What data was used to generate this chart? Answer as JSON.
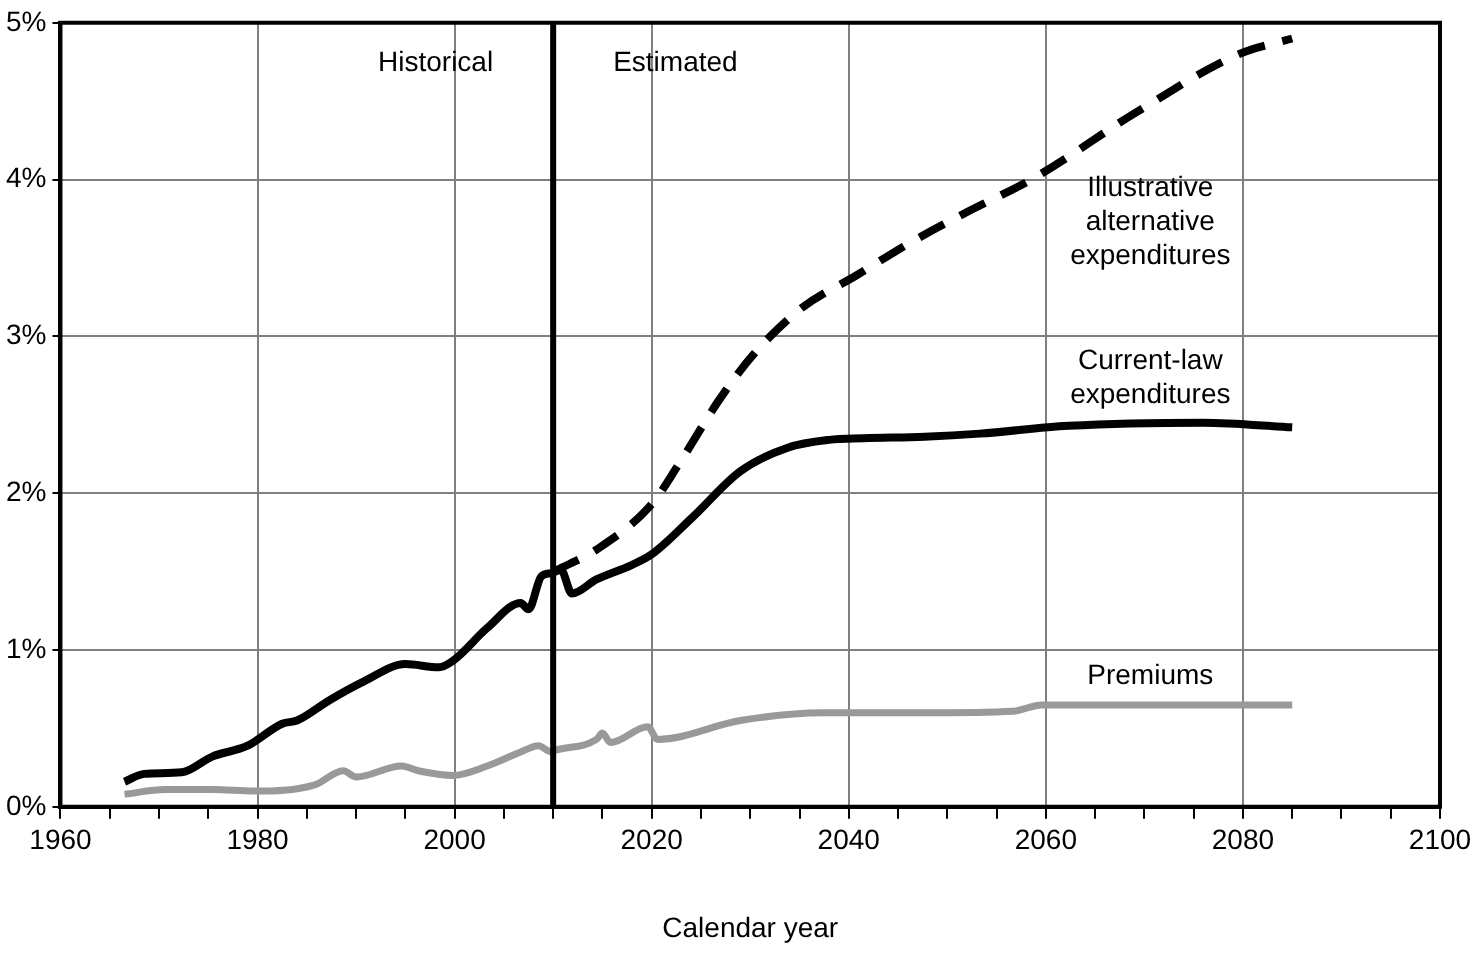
{
  "chart_data": {
    "type": "line",
    "xlabel": "Calendar year",
    "xlim": [
      1960,
      2100
    ],
    "xticks": [
      1960,
      {
        "value": 1965,
        "label": null
      },
      {
        "value": 1970,
        "label": null
      },
      {
        "value": 1975,
        "label": null
      },
      1980,
      {
        "value": 1985,
        "label": null
      },
      {
        "value": 1990,
        "label": null
      },
      {
        "value": 1995,
        "label": null
      },
      2000,
      {
        "value": 2005,
        "label": null
      },
      {
        "value": 2010,
        "label": null
      },
      {
        "value": 2015,
        "label": null
      },
      2020,
      {
        "value": 2025,
        "label": null
      },
      {
        "value": 2030,
        "label": null
      },
      {
        "value": 2035,
        "label": null
      },
      2040,
      {
        "value": 2045,
        "label": null
      },
      {
        "value": 2050,
        "label": null
      },
      {
        "value": 2055,
        "label": null
      },
      2060,
      {
        "value": 2065,
        "label": null
      },
      {
        "value": 2070,
        "label": null
      },
      {
        "value": 2075,
        "label": null
      },
      2080,
      {
        "value": 2085,
        "label": null
      },
      {
        "value": 2090,
        "label": null
      },
      {
        "value": 2095,
        "label": null
      },
      2100
    ],
    "ylim": [
      0,
      5
    ],
    "yticks": [
      {
        "value": 0,
        "label": "0%"
      },
      {
        "value": 1,
        "label": "1%"
      },
      {
        "value": 2,
        "label": "2%"
      },
      {
        "value": 3,
        "label": "3%"
      },
      {
        "value": 4,
        "label": "4%"
      },
      {
        "value": 5,
        "label": "5%"
      }
    ],
    "grid": true,
    "legend": false,
    "marker": "none",
    "series": [
      {
        "name": "Current-law expenditures",
        "color": "#000000",
        "line_style": "solid",
        "x": [
          1966.5,
          1968.5,
          1972.3,
          1975.4,
          1979,
          1982.5,
          1984,
          1987.3,
          1990.8,
          1995,
          1998.4,
          1999.8,
          2003.3,
          2006.7,
          2007.5,
          2008.8,
          2009.8,
          2010.8,
          2011.9,
          2014.4,
          2017.9,
          2020,
          2024.2,
          2029,
          2033.8,
          2038,
          2041.5,
          2047.7,
          2053.3,
          2062.3,
          2076,
          2085
        ],
        "values": [
          0.16,
          0.21,
          0.22,
          0.32,
          0.39,
          0.53,
          0.55,
          0.68,
          0.8,
          0.91,
          0.89,
          0.93,
          1.14,
          1.3,
          1.26,
          1.47,
          1.49,
          1.51,
          1.36,
          1.45,
          1.54,
          1.61,
          1.85,
          2.14,
          2.29,
          2.34,
          2.35,
          2.36,
          2.38,
          2.43,
          2.45,
          2.42
        ]
      },
      {
        "name": "Illustrative alternative expenditures",
        "color": "#000000",
        "line_style": "dashed",
        "x": [
          2010,
          2011.7,
          2014.4,
          2020,
          2022.7,
          2026.9,
          2030.4,
          2035.2,
          2040.8,
          2046.3,
          2051.9,
          2058.8,
          2069.2,
          2079.6,
          2085
        ],
        "values": [
          1.5,
          1.55,
          1.64,
          1.93,
          2.18,
          2.6,
          2.89,
          3.18,
          3.39,
          3.6,
          3.79,
          4.01,
          4.43,
          4.8,
          4.9
        ]
      },
      {
        "name": "Premiums",
        "color": "#999999",
        "line_style": "solid",
        "x": [
          1966.5,
          1970.6,
          1975.4,
          1979.6,
          1985.8,
          1988.7,
          1990,
          1994.6,
          1996.3,
          1999.8,
          2003.3,
          2006.7,
          2008.5,
          2009.8,
          2010.2,
          2014.4,
          2015,
          2015.8,
          2019.6,
          2020.6,
          2029,
          2037.3,
          2047.7,
          2056.7,
          2059.6,
          2085
        ],
        "values": [
          0.08,
          0.11,
          0.11,
          0.1,
          0.14,
          0.23,
          0.19,
          0.26,
          0.23,
          0.2,
          0.26,
          0.35,
          0.39,
          0.35,
          0.36,
          0.43,
          0.47,
          0.41,
          0.51,
          0.43,
          0.55,
          0.6,
          0.6,
          0.61,
          0.65,
          0.65
        ]
      }
    ],
    "ref_lines": [
      {
        "axis": "x",
        "value": 2010,
        "color": "#000000"
      }
    ],
    "annotations": [
      "Historical",
      "Estimated"
    ]
  }
}
